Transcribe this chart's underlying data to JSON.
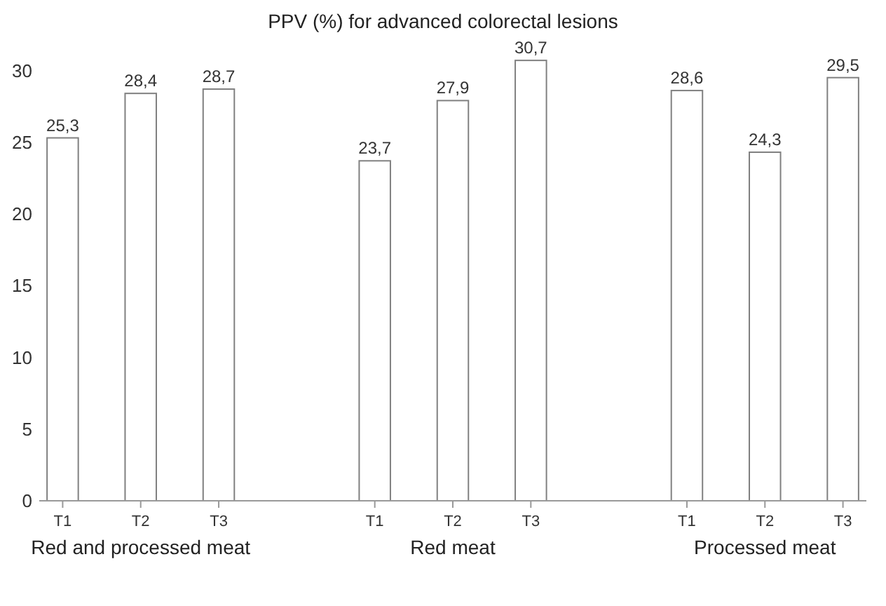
{
  "chart_data": {
    "type": "bar",
    "title": "PPV (%) for advanced colorectal lesions",
    "categories": [
      "T1",
      "T2",
      "T3",
      null,
      "T1",
      "T2",
      "T3",
      null,
      "T1",
      "T2",
      "T3"
    ],
    "values": [
      25.3,
      28.4,
      28.7,
      null,
      23.7,
      27.9,
      30.7,
      null,
      28.6,
      24.3,
      29.5
    ],
    "value_labels": [
      "25,3",
      "28,4",
      "28,7",
      null,
      "23,7",
      "27,9",
      "30,7",
      null,
      "28,6",
      "24,3",
      "29,5"
    ],
    "color": "#ffffff",
    "ylim": [
      0,
      31
    ],
    "yticks": [
      0,
      5,
      10,
      15,
      20,
      25,
      30
    ],
    "grid": false,
    "annotations": [
      "Red and processed meat",
      "Red meat",
      "Processed meat"
    ]
  }
}
